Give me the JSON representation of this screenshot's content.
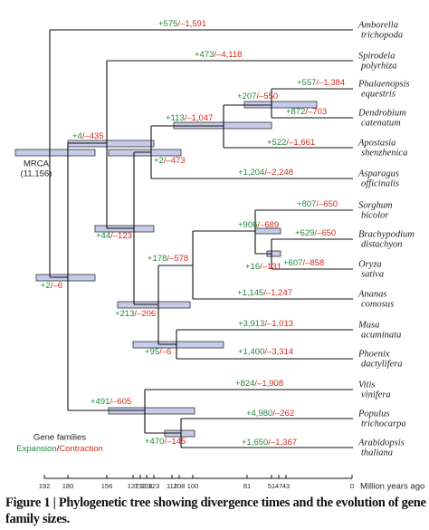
{
  "taxa": [
    {
      "genus": "Amborella",
      "species": "trichopoda"
    },
    {
      "genus": "Spirodela",
      "species": "polyrhiza"
    },
    {
      "genus": "Phalaenopsis",
      "species": "equestris"
    },
    {
      "genus": "Dendrobium",
      "species": "catenatum"
    },
    {
      "genus": "Apostasia",
      "species": "shenzhenica"
    },
    {
      "genus": "Asparagus",
      "species": "officinalis"
    },
    {
      "genus": "Sorghum",
      "species": "bicolor"
    },
    {
      "genus": "Brachypodium",
      "species": "distachyon"
    },
    {
      "genus": "Oryza",
      "species": "sativa"
    },
    {
      "genus": "Ananas",
      "species": "comosus"
    },
    {
      "genus": "Musa",
      "species": "acuminata"
    },
    {
      "genus": "Phoenix",
      "species": "dactylifera"
    },
    {
      "genus": "Vitis",
      "species": "vinifera"
    },
    {
      "genus": "Populus",
      "species": "trichocarpa"
    },
    {
      "genus": "Arabidopsis",
      "species": "thaliana"
    }
  ],
  "separator": "/",
  "branches": [
    {
      "expansion": "+575",
      "contraction": "–1,591"
    },
    {
      "expansion": "+473",
      "contraction": "–4,118"
    },
    {
      "expansion": "+557",
      "contraction": "–1,384"
    },
    {
      "expansion": "+207",
      "contraction": "–550"
    },
    {
      "expansion": "+872",
      "contraction": "–703"
    },
    {
      "expansion": "+113",
      "contraction": "–1,047"
    },
    {
      "expansion": "+522",
      "contraction": "–1,661"
    },
    {
      "expansion": "+4",
      "contraction": "–435"
    },
    {
      "expansion": "+2",
      "contraction": "–473"
    },
    {
      "expansion": "+1,204",
      "contraction": "–2,248"
    },
    {
      "expansion": "+807",
      "contraction": "–650"
    },
    {
      "expansion": "+906",
      "contraction": "–689"
    },
    {
      "expansion": "+629",
      "contraction": "–650"
    },
    {
      "expansion": "+44",
      "contraction": "–123"
    },
    {
      "expansion": "+178",
      "contraction": "–578"
    },
    {
      "expansion": "+16",
      "contraction": "–131"
    },
    {
      "expansion": "+607",
      "contraction": "–858"
    },
    {
      "expansion": "+2",
      "contraction": "–6"
    },
    {
      "expansion": "+1,145",
      "contraction": "–1,247"
    },
    {
      "expansion": "+213",
      "contraction": "–206"
    },
    {
      "expansion": "+3,913",
      "contraction": "–1,013"
    },
    {
      "expansion": "+95",
      "contraction": "–6"
    },
    {
      "expansion": "+1,400",
      "contraction": "–3,314"
    },
    {
      "expansion": "+824",
      "contraction": "–1,908"
    },
    {
      "expansion": "+491",
      "contraction": "–605"
    },
    {
      "expansion": "+4,980",
      "contraction": "–262"
    },
    {
      "expansion": "+470",
      "contraction": "–145"
    },
    {
      "expansion": "+1,650",
      "contraction": "–1,367"
    }
  ],
  "root": {
    "label": "MRCA",
    "count": "(11,156)"
  },
  "legend": {
    "title": "Gene families",
    "expansion": "Expansion",
    "separator": "/",
    "contraction": "Contraction"
  },
  "axis": {
    "ticks": [
      192,
      180,
      156,
      137,
      132,
      128,
      123,
      112,
      108,
      100,
      81,
      51,
      47,
      43,
      0
    ],
    "label": "Million years ago"
  },
  "caption": "Figure 1 | Phylogenetic tree showing divergence times and the evolution of gene family sizes."
}
